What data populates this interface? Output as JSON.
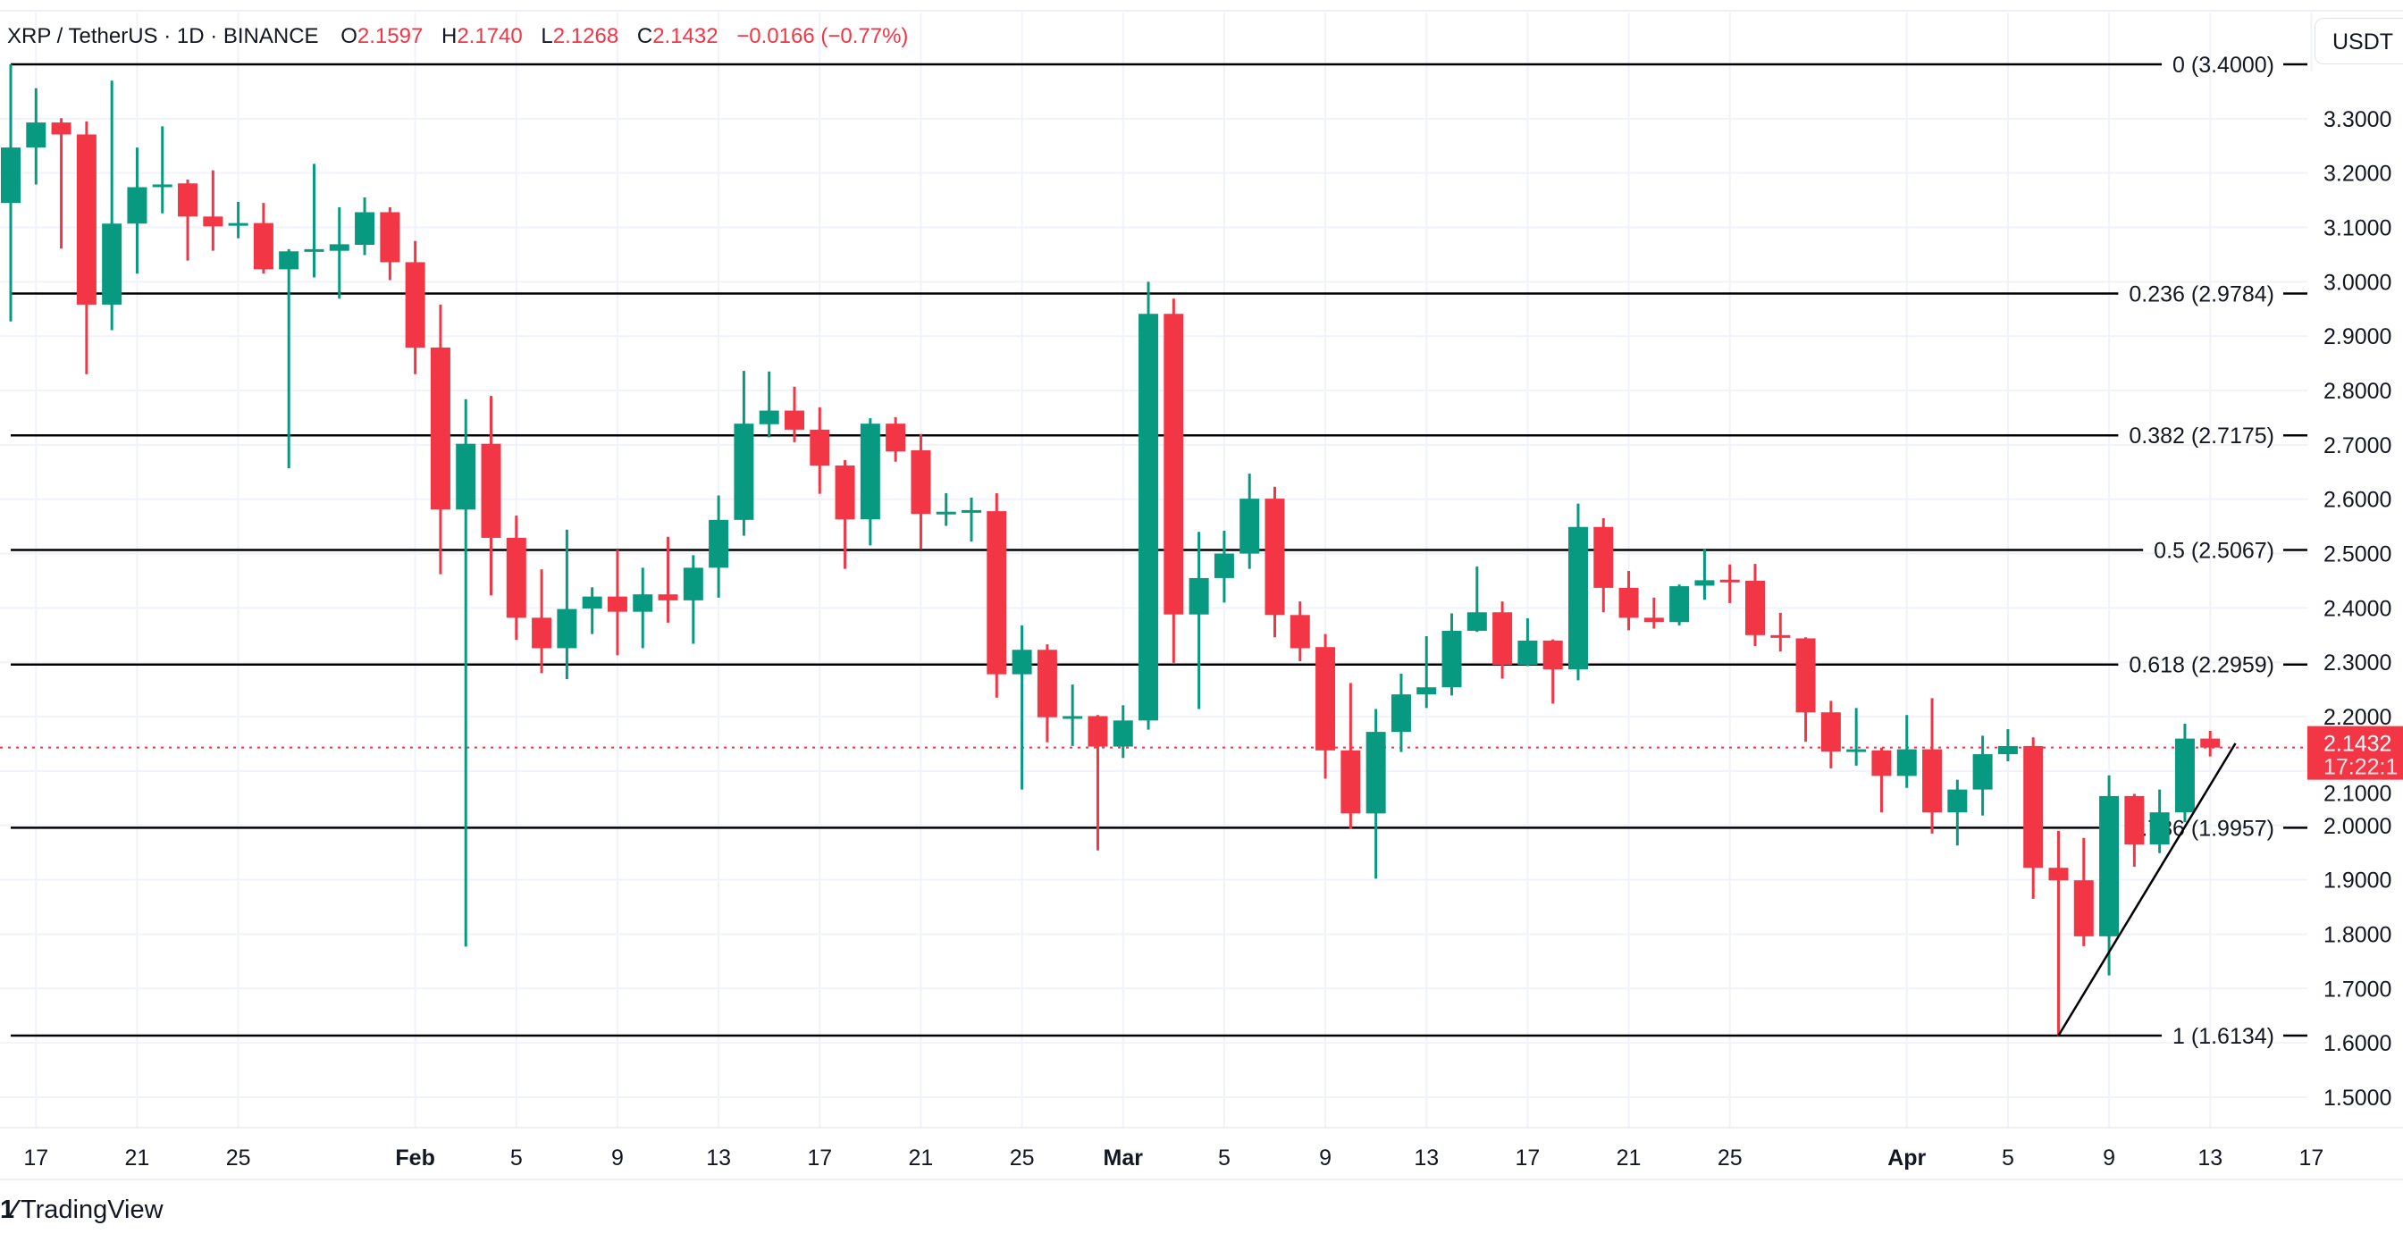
{
  "header": {
    "symbol": "XRP / TetherUS · 1D · BINANCE",
    "o_label": "O",
    "o": "2.1597",
    "h_label": "H",
    "h": "2.1740",
    "l_label": "L",
    "l": "2.1268",
    "c_label": "C",
    "c": "2.1432",
    "change": "−0.0166 (−0.77%)"
  },
  "currency": "USDT",
  "last_price": {
    "value": "2.1432",
    "countdown": "17:22:1"
  },
  "logo_text": "TradingView",
  "colors": {
    "up": "#089981",
    "down": "#F23645",
    "fib": "#000000",
    "grid": "#F0F3FA"
  },
  "chart_data": {
    "type": "candlestick",
    "x_label": "",
    "y_label": "",
    "ylim": [
      1.42,
      3.48
    ],
    "grid": true,
    "y_ticks": [
      "3.3000",
      "3.2000",
      "3.1000",
      "3.0000",
      "2.9000",
      "2.8000",
      "2.7000",
      "2.6000",
      "2.5000",
      "2.4000",
      "2.3000",
      "2.2000",
      "2.1000",
      "2.0000",
      "1.9000",
      "1.8000",
      "1.7000",
      "1.6000",
      "1.5000"
    ],
    "x_ticks": [
      {
        "date": "2025-01-17",
        "label": "17",
        "bold": false
      },
      {
        "date": "2025-01-21",
        "label": "21",
        "bold": false
      },
      {
        "date": "2025-01-25",
        "label": "25",
        "bold": false
      },
      {
        "date": "2025-02-01",
        "label": "Feb",
        "bold": true
      },
      {
        "date": "2025-02-05",
        "label": "5",
        "bold": false
      },
      {
        "date": "2025-02-09",
        "label": "9",
        "bold": false
      },
      {
        "date": "2025-02-13",
        "label": "13",
        "bold": false
      },
      {
        "date": "2025-02-17",
        "label": "17",
        "bold": false
      },
      {
        "date": "2025-02-21",
        "label": "21",
        "bold": false
      },
      {
        "date": "2025-02-25",
        "label": "25",
        "bold": false
      },
      {
        "date": "2025-03-01",
        "label": "Mar",
        "bold": true
      },
      {
        "date": "2025-03-05",
        "label": "5",
        "bold": false
      },
      {
        "date": "2025-03-09",
        "label": "9",
        "bold": false
      },
      {
        "date": "2025-03-13",
        "label": "13",
        "bold": false
      },
      {
        "date": "2025-03-17",
        "label": "17",
        "bold": false
      },
      {
        "date": "2025-03-21",
        "label": "21",
        "bold": false
      },
      {
        "date": "2025-03-25",
        "label": "25",
        "bold": false
      },
      {
        "date": "2025-04-01",
        "label": "Apr",
        "bold": true
      },
      {
        "date": "2025-04-05",
        "label": "5",
        "bold": false
      },
      {
        "date": "2025-04-09",
        "label": "9",
        "bold": false
      },
      {
        "date": "2025-04-13",
        "label": "13",
        "bold": false
      },
      {
        "date": "2025-04-17",
        "label": "17",
        "bold": false
      }
    ],
    "fib_levels": [
      {
        "ratio": "0",
        "price": 3.4,
        "label": "0 (3.4000)"
      },
      {
        "ratio": "0.236",
        "price": 2.9784,
        "label": "0.236 (2.9784)"
      },
      {
        "ratio": "0.382",
        "price": 2.7175,
        "label": "0.382 (2.7175)"
      },
      {
        "ratio": "0.5",
        "price": 2.5067,
        "label": "0.5 (2.5067)"
      },
      {
        "ratio": "0.618",
        "price": 2.2959,
        "label": "0.618 (2.2959)"
      },
      {
        "ratio": "0.786",
        "price": 1.9957,
        "label": "0.786 (1.9957)"
      },
      {
        "ratio": "1",
        "price": 1.6134,
        "label": "1 (1.6134)"
      }
    ],
    "trendline": [
      {
        "date": "2025-04-07",
        "price": 1.6134
      },
      {
        "date": "2025-04-14",
        "price": 2.151
      }
    ],
    "last_close": 2.1432,
    "columns": [
      "date",
      "open",
      "high",
      "low",
      "close"
    ],
    "candles": [
      [
        "2025-01-16",
        3.145,
        3.4,
        2.927,
        3.247
      ],
      [
        "2025-01-17",
        3.247,
        3.356,
        3.179,
        3.293
      ],
      [
        "2025-01-18",
        3.293,
        3.301,
        3.061,
        3.271
      ],
      [
        "2025-01-19",
        3.271,
        3.295,
        2.83,
        2.958
      ],
      [
        "2025-01-20",
        2.958,
        3.37,
        2.911,
        3.107
      ],
      [
        "2025-01-21",
        3.107,
        3.247,
        3.015,
        3.174
      ],
      [
        "2025-01-22",
        3.175,
        3.286,
        3.126,
        3.179
      ],
      [
        "2025-01-23",
        3.181,
        3.188,
        3.039,
        3.12
      ],
      [
        "2025-01-24",
        3.12,
        3.205,
        3.057,
        3.102
      ],
      [
        "2025-01-25",
        3.104,
        3.147,
        3.08,
        3.108
      ],
      [
        "2025-01-26",
        3.108,
        3.145,
        3.015,
        3.023
      ],
      [
        "2025-01-27",
        3.023,
        3.06,
        2.657,
        3.056
      ],
      [
        "2025-01-28",
        3.058,
        3.217,
        3.008,
        3.06
      ],
      [
        "2025-01-29",
        3.057,
        3.137,
        2.969,
        3.069
      ],
      [
        "2025-01-30",
        3.068,
        3.155,
        3.049,
        3.128
      ],
      [
        "2025-01-31",
        3.128,
        3.137,
        3.003,
        3.036
      ],
      [
        "2025-02-01",
        3.036,
        3.075,
        2.83,
        2.879
      ],
      [
        "2025-02-02",
        2.879,
        2.958,
        2.462,
        2.581
      ],
      [
        "2025-02-03",
        2.581,
        2.784,
        1.777,
        2.702
      ],
      [
        "2025-02-04",
        2.702,
        2.79,
        2.423,
        2.529
      ],
      [
        "2025-02-05",
        2.529,
        2.57,
        2.341,
        2.382
      ],
      [
        "2025-02-06",
        2.382,
        2.471,
        2.28,
        2.326
      ],
      [
        "2025-02-07",
        2.326,
        2.544,
        2.269,
        2.398
      ],
      [
        "2025-02-08",
        2.399,
        2.438,
        2.352,
        2.421
      ],
      [
        "2025-02-09",
        2.421,
        2.507,
        2.313,
        2.393
      ],
      [
        "2025-02-10",
        2.393,
        2.474,
        2.326,
        2.425
      ],
      [
        "2025-02-11",
        2.425,
        2.531,
        2.373,
        2.414
      ],
      [
        "2025-02-12",
        2.414,
        2.497,
        2.334,
        2.474
      ],
      [
        "2025-02-13",
        2.474,
        2.607,
        2.419,
        2.562
      ],
      [
        "2025-02-14",
        2.562,
        2.836,
        2.533,
        2.739
      ],
      [
        "2025-02-15",
        2.738,
        2.835,
        2.714,
        2.763
      ],
      [
        "2025-02-16",
        2.763,
        2.807,
        2.705,
        2.728
      ],
      [
        "2025-02-17",
        2.728,
        2.769,
        2.61,
        2.662
      ],
      [
        "2025-02-18",
        2.662,
        2.672,
        2.472,
        2.563
      ],
      [
        "2025-02-19",
        2.563,
        2.749,
        2.515,
        2.739
      ],
      [
        "2025-02-20",
        2.739,
        2.751,
        2.669,
        2.688
      ],
      [
        "2025-02-21",
        2.69,
        2.72,
        2.508,
        2.573
      ],
      [
        "2025-02-22",
        2.575,
        2.611,
        2.551,
        2.577
      ],
      [
        "2025-02-23",
        2.578,
        2.603,
        2.522,
        2.58
      ],
      [
        "2025-02-24",
        2.578,
        2.611,
        2.235,
        2.278
      ],
      [
        "2025-02-25",
        2.278,
        2.368,
        2.066,
        2.323
      ],
      [
        "2025-02-26",
        2.323,
        2.333,
        2.153,
        2.199
      ],
      [
        "2025-02-27",
        2.199,
        2.259,
        2.146,
        2.201
      ],
      [
        "2025-02-28",
        2.201,
        2.203,
        1.954,
        2.145
      ],
      [
        "2025-03-01",
        2.145,
        2.221,
        2.124,
        2.193
      ],
      [
        "2025-03-02",
        2.193,
        3.0,
        2.176,
        2.941
      ],
      [
        "2025-03-03",
        2.941,
        2.969,
        2.299,
        2.388
      ],
      [
        "2025-03-04",
        2.388,
        2.54,
        2.214,
        2.455
      ],
      [
        "2025-03-05",
        2.455,
        2.542,
        2.41,
        2.5
      ],
      [
        "2025-03-06",
        2.5,
        2.647,
        2.472,
        2.601
      ],
      [
        "2025-03-07",
        2.601,
        2.623,
        2.346,
        2.387
      ],
      [
        "2025-03-08",
        2.387,
        2.412,
        2.302,
        2.326
      ],
      [
        "2025-03-09",
        2.328,
        2.352,
        2.086,
        2.138
      ],
      [
        "2025-03-10",
        2.138,
        2.262,
        1.994,
        2.022
      ],
      [
        "2025-03-11",
        2.022,
        2.214,
        1.902,
        2.172
      ],
      [
        "2025-03-12",
        2.172,
        2.279,
        2.135,
        2.241
      ],
      [
        "2025-03-13",
        2.241,
        2.348,
        2.216,
        2.254
      ],
      [
        "2025-03-14",
        2.254,
        2.39,
        2.239,
        2.358
      ],
      [
        "2025-03-15",
        2.358,
        2.476,
        2.356,
        2.392
      ],
      [
        "2025-03-16",
        2.392,
        2.412,
        2.27,
        2.295
      ],
      [
        "2025-03-17",
        2.295,
        2.381,
        2.293,
        2.34
      ],
      [
        "2025-03-18",
        2.34,
        2.342,
        2.224,
        2.287
      ],
      [
        "2025-03-19",
        2.287,
        2.592,
        2.267,
        2.549
      ],
      [
        "2025-03-20",
        2.549,
        2.565,
        2.392,
        2.437
      ],
      [
        "2025-03-21",
        2.437,
        2.468,
        2.359,
        2.382
      ],
      [
        "2025-03-22",
        2.382,
        2.419,
        2.362,
        2.374
      ],
      [
        "2025-03-23",
        2.374,
        2.443,
        2.368,
        2.44
      ],
      [
        "2025-03-24",
        2.441,
        2.508,
        2.415,
        2.451
      ],
      [
        "2025-03-25",
        2.452,
        2.48,
        2.409,
        2.451
      ],
      [
        "2025-03-26",
        2.45,
        2.481,
        2.33,
        2.35
      ],
      [
        "2025-03-27",
        2.35,
        2.391,
        2.32,
        2.345
      ],
      [
        "2025-03-28",
        2.344,
        2.346,
        2.154,
        2.208
      ],
      [
        "2025-03-29",
        2.208,
        2.229,
        2.105,
        2.136
      ],
      [
        "2025-03-30",
        2.137,
        2.216,
        2.11,
        2.14
      ],
      [
        "2025-03-31",
        2.138,
        2.143,
        2.024,
        2.091
      ],
      [
        "2025-04-01",
        2.091,
        2.203,
        2.069,
        2.14
      ],
      [
        "2025-04-02",
        2.14,
        2.234,
        1.985,
        2.024
      ],
      [
        "2025-04-03",
        2.024,
        2.084,
        1.963,
        2.066
      ],
      [
        "2025-04-04",
        2.066,
        2.165,
        2.018,
        2.131
      ],
      [
        "2025-04-05",
        2.131,
        2.177,
        2.118,
        2.146
      ],
      [
        "2025-04-06",
        2.146,
        2.162,
        1.865,
        1.922
      ],
      [
        "2025-04-07",
        1.922,
        1.99,
        1.613,
        1.899
      ],
      [
        "2025-04-08",
        1.899,
        1.977,
        1.778,
        1.796
      ],
      [
        "2025-04-09",
        1.796,
        2.092,
        1.724,
        2.054
      ],
      [
        "2025-04-10",
        2.054,
        2.058,
        1.924,
        1.965
      ],
      [
        "2025-04-11",
        1.965,
        2.066,
        1.949,
        2.024
      ],
      [
        "2025-04-12",
        2.024,
        2.187,
        2.006,
        2.1597
      ],
      [
        "2025-04-13",
        2.1597,
        2.174,
        2.1268,
        2.1432
      ]
    ]
  }
}
